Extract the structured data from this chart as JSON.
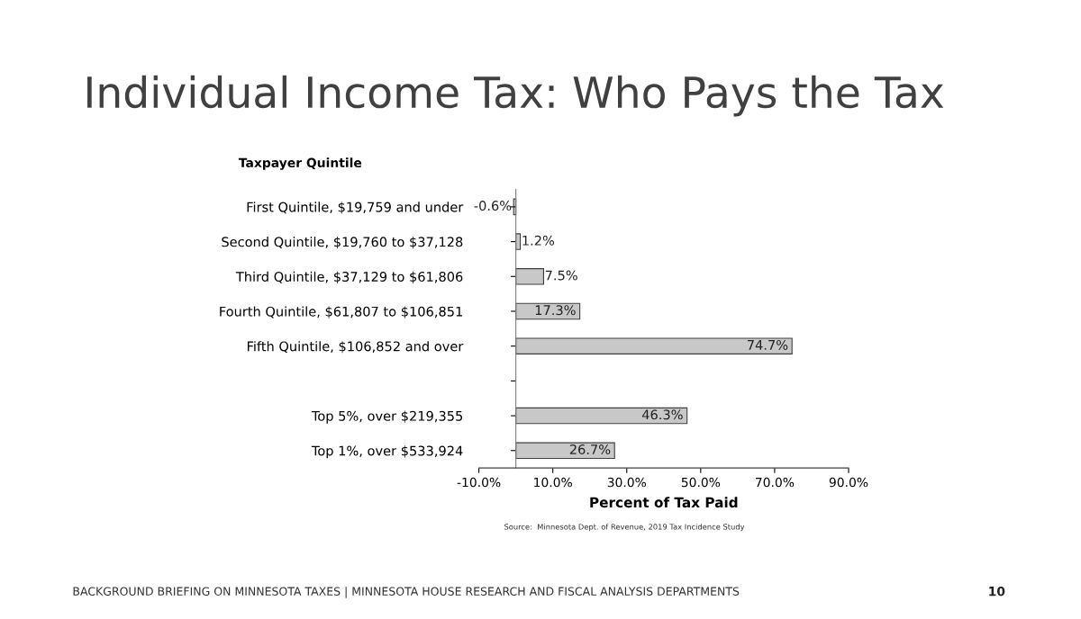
{
  "chart_data": {
    "type": "bar",
    "orientation": "horizontal",
    "title": "Individual Income Tax: Who Pays the Tax",
    "ylabel": "Taxpayer Quintile",
    "xlabel": "Percent of Tax Paid",
    "categories": [
      "First Quintile, $19,759 and under",
      "Second Quintile, $19,760 to $37,128",
      "Third Quintile, $37,129 to $61,806",
      "Fourth Quintile, $61,807 to $106,851",
      "Fifth Quintile, $106,852 and over",
      null,
      "Top 5%, over $219,355",
      "Top 1%, over $533,924"
    ],
    "values": [
      -0.6,
      1.2,
      7.5,
      17.3,
      74.7,
      null,
      46.3,
      26.7
    ],
    "value_labels": [
      "-0.6%",
      "1.2%",
      "7.5%",
      "17.3%",
      "74.7%",
      null,
      "46.3%",
      "26.7%"
    ],
    "color": "#c8c8c8",
    "xlim": [
      -10,
      90
    ],
    "xticks": [
      {
        "value": -10,
        "label": "-10.0%"
      },
      {
        "value": 10,
        "label": "10.0%"
      },
      {
        "value": 30,
        "label": "30.0%"
      },
      {
        "value": 50,
        "label": "50.0%"
      },
      {
        "value": 70,
        "label": "70.0%"
      },
      {
        "value": 90,
        "label": "90.0%"
      }
    ],
    "grid": false,
    "legend": false,
    "annotations": [
      "Source:  Minnesota Dept. of Revenue, 2019 Tax Incidence Study",
      "BACKGROUND BRIEFING ON MINNESOTA TAXES | MINNESOTA HOUSE RESEARCH AND FISCAL ANALYSIS DEPARTMENTS",
      "10"
    ]
  }
}
